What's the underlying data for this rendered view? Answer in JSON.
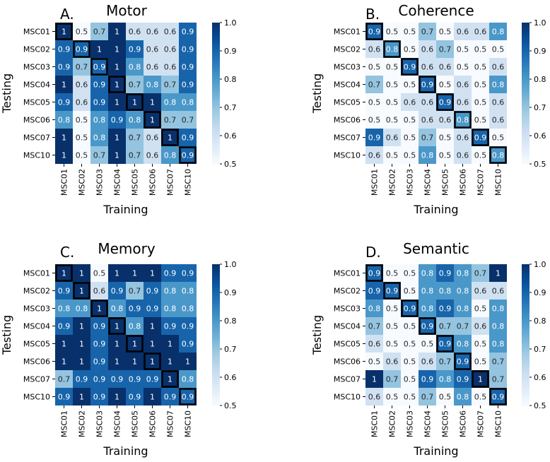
{
  "colors": {
    "scale": [
      "#f7fbff",
      "#deebf7",
      "#c6dbef",
      "#9ecae1",
      "#6baed6",
      "#4292c6",
      "#2171b5",
      "#08519c",
      "#08306b"
    ],
    "text_dark": "#262626",
    "text_light": "#ffffff",
    "highlight_border": "#000000"
  },
  "chart_data": [
    {
      "type": "heatmap",
      "letter": "A.",
      "title": "Motor",
      "xlabel": "Training",
      "ylabel": "Testing",
      "x_categories": [
        "MSC01",
        "MSC02",
        "MSC03",
        "MSC04",
        "MSC05",
        "MSC06",
        "MSC07",
        "MSC10"
      ],
      "y_categories": [
        "MSC01",
        "MSC02",
        "MSC03",
        "MSC04",
        "MSC05",
        "MSC06",
        "MSC07",
        "MSC10"
      ],
      "values": [
        [
          1,
          0.5,
          0.7,
          1,
          0.6,
          0.6,
          0.6,
          0.9
        ],
        [
          0.9,
          0.9,
          1,
          1,
          0.9,
          0.6,
          0.6,
          0.9
        ],
        [
          0.9,
          0.7,
          0.9,
          1,
          0.8,
          0.6,
          0.6,
          0.9
        ],
        [
          1,
          0.6,
          0.9,
          1,
          0.7,
          0.8,
          0.7,
          0.9
        ],
        [
          0.9,
          0.6,
          0.9,
          1,
          1,
          1,
          0.8,
          0.8
        ],
        [
          0.8,
          0.5,
          0.8,
          0.9,
          0.8,
          1,
          0.7,
          0.7
        ],
        [
          1,
          0.5,
          0.8,
          1,
          0.7,
          0.6,
          1,
          0.9
        ],
        [
          1,
          0.5,
          0.7,
          1,
          0.7,
          0.6,
          0.8,
          0.9
        ]
      ],
      "highlight_diagonal": true,
      "vmin": 0.5,
      "vmax": 1.0,
      "colorbar_ticks": [
        "0.5",
        "0.6",
        "0.7",
        "0.8",
        "0.9",
        "1.0"
      ]
    },
    {
      "type": "heatmap",
      "letter": "B.",
      "title": "Coherence",
      "xlabel": "Training",
      "ylabel": "Testing",
      "x_categories": [
        "MSC01",
        "MSC02",
        "MSC03",
        "MSC04",
        "MSC05",
        "MSC06",
        "MSC07",
        "MSC10"
      ],
      "y_categories": [
        "MSC01",
        "MSC02",
        "MSC03",
        "MSC04",
        "MSC05",
        "MSC06",
        "MSC07",
        "MSC10"
      ],
      "values": [
        [
          0.9,
          0.5,
          0.5,
          0.7,
          0.5,
          0.6,
          0.6,
          0.8
        ],
        [
          0.6,
          0.8,
          0.5,
          0.6,
          0.7,
          0.5,
          0.5,
          0.5
        ],
        [
          0.5,
          0.5,
          0.9,
          0.6,
          0.6,
          0.5,
          0.5,
          0.6
        ],
        [
          0.7,
          0.5,
          0.5,
          0.9,
          0.5,
          0.6,
          0.5,
          0.8
        ],
        [
          0.5,
          0.5,
          0.6,
          0.6,
          0.9,
          0.6,
          0.5,
          0.6
        ],
        [
          0.5,
          0.5,
          0.5,
          0.6,
          0.6,
          0.8,
          0.5,
          0.6
        ],
        [
          0.9,
          0.6,
          0.5,
          0.7,
          0.5,
          0.6,
          0.9,
          0.5
        ],
        [
          0.6,
          0.5,
          0.5,
          0.8,
          0.5,
          0.6,
          0.5,
          0.8
        ]
      ],
      "highlight_diagonal": true,
      "vmin": 0.5,
      "vmax": 1.0,
      "colorbar_ticks": [
        "0.5",
        "0.6",
        "0.7",
        "0.8",
        "0.9",
        "1.0"
      ]
    },
    {
      "type": "heatmap",
      "letter": "C.",
      "title": "Memory",
      "xlabel": "Training",
      "ylabel": "Testing",
      "x_categories": [
        "MSC01",
        "MSC02",
        "MSC03",
        "MSC04",
        "MSC05",
        "MSC06",
        "MSC07",
        "MSC10"
      ],
      "y_categories": [
        "MSC01",
        "MSC02",
        "MSC03",
        "MSC04",
        "MSC05",
        "MSC06",
        "MSC07",
        "MSC10"
      ],
      "values": [
        [
          1,
          1,
          0.5,
          1,
          1,
          1,
          0.9,
          0.9
        ],
        [
          0.9,
          1,
          0.6,
          0.9,
          0.7,
          0.9,
          0.8,
          0.8
        ],
        [
          0.8,
          0.8,
          1,
          0.8,
          0.9,
          0.9,
          0.8,
          0.8
        ],
        [
          0.9,
          1,
          0.9,
          1,
          0.8,
          1,
          0.9,
          0.9
        ],
        [
          1,
          1,
          0.9,
          1,
          1,
          1,
          1,
          0.9
        ],
        [
          1,
          1,
          0.9,
          1,
          1,
          1,
          1,
          1
        ],
        [
          0.7,
          0.9,
          0.9,
          0.9,
          0.9,
          0.9,
          1,
          0.8
        ],
        [
          0.9,
          1,
          0.9,
          1,
          0.9,
          1,
          0.9,
          0.9
        ]
      ],
      "highlight_diagonal": true,
      "vmin": 0.5,
      "vmax": 1.0,
      "colorbar_ticks": [
        "0.5",
        "0.6",
        "0.7",
        "0.8",
        "0.9",
        "1.0"
      ]
    },
    {
      "type": "heatmap",
      "letter": "D.",
      "title": "Semantic",
      "xlabel": "Training",
      "ylabel": "Testing",
      "x_categories": [
        "MSC01",
        "MSC02",
        "MSC03",
        "MSC04",
        "MSC05",
        "MSC06",
        "MSC07",
        "MSC10"
      ],
      "y_categories": [
        "MSC01",
        "MSC02",
        "MSC03",
        "MSC04",
        "MSC05",
        "MSC06",
        "MSC07",
        "MSC10"
      ],
      "values": [
        [
          0.9,
          0.5,
          0.5,
          0.8,
          0.9,
          0.8,
          0.7,
          1
        ],
        [
          0.9,
          0.9,
          0.5,
          0.8,
          0.8,
          0.8,
          0.6,
          0.6
        ],
        [
          0.8,
          0.5,
          0.9,
          0.8,
          0.9,
          0.8,
          0.5,
          0.8
        ],
        [
          0.7,
          0.5,
          0.5,
          0.9,
          0.7,
          0.7,
          0.6,
          0.8
        ],
        [
          0.6,
          0.5,
          0.5,
          0.5,
          0.9,
          0.8,
          0.5,
          0.8
        ],
        [
          0.5,
          0.6,
          0.5,
          0.6,
          0.7,
          0.9,
          0.5,
          0.7
        ],
        [
          1,
          0.7,
          0.5,
          0.9,
          0.8,
          0.9,
          1,
          0.7
        ],
        [
          0.6,
          0.5,
          0.5,
          0.7,
          0.5,
          0.8,
          0.5,
          0.9
        ]
      ],
      "highlight_diagonal": true,
      "vmin": 0.5,
      "vmax": 1.0,
      "colorbar_ticks": [
        "0.5",
        "0.6",
        "0.7",
        "0.8",
        "0.9",
        "1.0"
      ]
    }
  ]
}
